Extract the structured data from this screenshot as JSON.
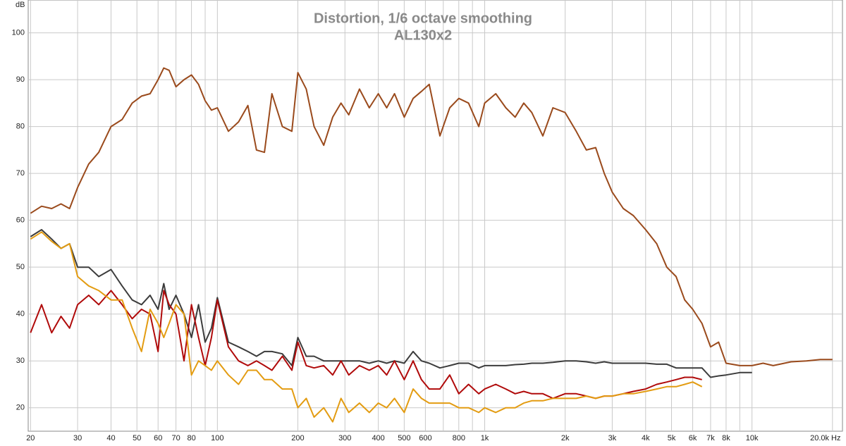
{
  "chart_data": {
    "type": "line",
    "title": "Distortion, 1/6 octave smoothing",
    "subtitle": "AL130x2",
    "y_label": "dB",
    "x_scale": "log",
    "grid": true,
    "xlim": [
      19.6,
      21800
    ],
    "ylim": [
      15,
      107
    ],
    "xticks": [
      20,
      30,
      40,
      50,
      60,
      70,
      80,
      100,
      200,
      300,
      400,
      500,
      600,
      800,
      {
        "value": 1000,
        "label": "1k"
      },
      {
        "value": 2000,
        "label": "2k"
      },
      {
        "value": 3000,
        "label": "3k"
      },
      {
        "value": 4000,
        "label": "4k"
      },
      {
        "value": 5000,
        "label": "5k"
      },
      {
        "value": 6000,
        "label": "6k"
      },
      {
        "value": 7000,
        "label": "7k"
      },
      {
        "value": 8000,
        "label": "8k"
      },
      {
        "value": 10000,
        "label": "10k"
      },
      {
        "value": 20000,
        "label": "20.0k Hz"
      }
    ],
    "minor_xticks": [
      90,
      700,
      900,
      9000
    ],
    "yticks": [
      20,
      30,
      40,
      50,
      60,
      70,
      80,
      90,
      100
    ],
    "x": [
      20,
      22,
      24,
      26,
      28,
      30,
      33,
      36,
      40,
      44,
      48,
      52,
      56,
      60,
      63,
      66,
      70,
      75,
      80,
      85,
      90,
      95,
      100,
      110,
      120,
      130,
      140,
      150,
      160,
      175,
      190,
      200,
      215,
      230,
      250,
      270,
      290,
      310,
      340,
      370,
      400,
      430,
      460,
      500,
      540,
      580,
      620,
      680,
      740,
      800,
      870,
      950,
      1000,
      1100,
      1200,
      1300,
      1400,
      1500,
      1650,
      1800,
      2000,
      2200,
      2400,
      2600,
      2800,
      3000,
      3300,
      3600,
      4000,
      4400,
      4800,
      5200,
      5600,
      6000,
      6500,
      7000,
      7500,
      8000,
      9000,
      10000,
      11000,
      12000,
      14000,
      16000,
      18000,
      20000
    ],
    "series": [
      {
        "color": "#9a4a1c",
        "values": [
          61.5,
          63,
          62.5,
          63.5,
          62.5,
          67,
          72,
          74.5,
          80,
          81.5,
          85,
          86.5,
          87,
          90,
          92.5,
          92,
          88.5,
          90,
          91,
          89,
          85.5,
          83.5,
          84,
          79,
          81,
          84.5,
          75,
          74.5,
          87,
          80,
          79,
          91.5,
          88,
          80,
          76,
          82,
          85,
          82.5,
          88,
          84,
          87,
          84,
          87,
          82,
          86,
          87.5,
          89,
          78,
          84,
          86,
          85,
          80,
          85,
          87,
          84,
          82,
          85,
          83,
          78,
          84,
          83,
          79,
          75,
          75.5,
          70,
          66,
          62.5,
          61,
          58,
          55,
          50,
          48,
          43,
          41,
          38,
          33,
          34,
          29.5,
          29,
          29,
          29.5,
          29,
          29.8,
          30,
          30.3,
          30.3
        ]
      },
      {
        "color": "#3c3c3c",
        "values": [
          56.5,
          58,
          56,
          54,
          55,
          50,
          50,
          48,
          49.5,
          46,
          43,
          42,
          44,
          41,
          46.5,
          41,
          44,
          40,
          35,
          42,
          34,
          37,
          43.5,
          34,
          33,
          32,
          31,
          32,
          32,
          31.5,
          29,
          35,
          31,
          31,
          30,
          30,
          30,
          30,
          30,
          29.5,
          30,
          29.5,
          30,
          29.5,
          32,
          30,
          29.5,
          28.5,
          29,
          29.5,
          29.5,
          28.5,
          29,
          29,
          29,
          29.2,
          29.3,
          29.5,
          29.5,
          29.7,
          30,
          30,
          29.8,
          29.5,
          29.8,
          29.5,
          29.5,
          29.5,
          29.5,
          29.3,
          29.3,
          28.5,
          28.5,
          28.5,
          28.5,
          26.5,
          26.8,
          27,
          27.5,
          27.5,
          null,
          null,
          null,
          null,
          null,
          null
        ]
      },
      {
        "color": "#b00a0a",
        "values": [
          36,
          42,
          36,
          39.5,
          37,
          42,
          44,
          42,
          45,
          42,
          39,
          41,
          40,
          32,
          45,
          42,
          40,
          30,
          42,
          35,
          29,
          35,
          43,
          33,
          30,
          29,
          30,
          29,
          28,
          31,
          28,
          34,
          29,
          28.5,
          29,
          27,
          30,
          27,
          29,
          28,
          29,
          27,
          30,
          26,
          30,
          26,
          24,
          24,
          27,
          23,
          25,
          23,
          24,
          25,
          24,
          23,
          23.5,
          23,
          23,
          22,
          23,
          23,
          22.5,
          22,
          22.5,
          22.5,
          23,
          23.5,
          24,
          25,
          25.5,
          26,
          26.5,
          26.5,
          26,
          null,
          null,
          null,
          null,
          null,
          null,
          null,
          null,
          null,
          null,
          null
        ]
      },
      {
        "color": "#e39c12",
        "values": [
          56,
          57.5,
          55.5,
          54,
          55,
          48,
          46,
          45,
          43,
          43,
          37,
          32,
          41,
          38,
          35,
          38,
          42,
          40,
          27,
          30,
          29,
          28,
          30,
          27,
          25,
          28,
          28,
          26,
          26,
          24,
          24,
          20,
          22,
          18,
          20,
          17,
          22,
          19,
          21,
          19,
          21,
          20,
          22,
          19,
          24,
          22,
          21,
          21,
          21,
          20,
          20,
          19,
          20,
          19,
          20,
          20,
          21,
          21.5,
          21.5,
          22,
          22,
          22,
          22.5,
          22,
          22.5,
          22.5,
          23,
          23,
          23.5,
          24,
          24.5,
          24.5,
          25,
          25.5,
          24.5,
          null,
          null,
          null,
          null,
          null,
          null,
          null,
          null,
          null,
          null,
          null
        ]
      }
    ]
  }
}
